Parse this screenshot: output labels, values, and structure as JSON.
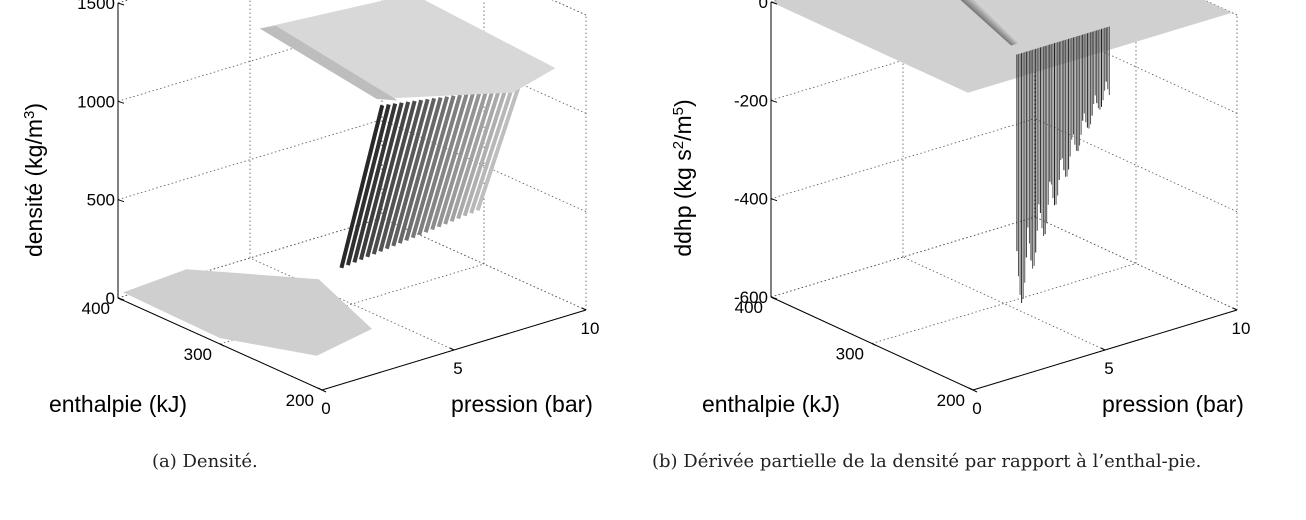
{
  "captions": {
    "a": "(a) Densité.",
    "b": "(b) Dérivée partielle de la densité par rapport à l’enthal-pie."
  },
  "chart_data": [
    {
      "type": "surface",
      "zlabel": "densité (kg/m³)",
      "zlabel_main": "densité (kg/m",
      "zlabel_sup": "3",
      "zlabel_end": ")",
      "xlabel": "pression (bar)",
      "ylabel": "enthalpie (kJ)",
      "xlim": [
        0,
        10
      ],
      "ylim": [
        200,
        400
      ],
      "zlim": [
        0,
        1500
      ],
      "xticks": [
        0,
        5,
        10
      ],
      "yticks": [
        200,
        300,
        400
      ],
      "zticks": [
        0,
        500,
        1000,
        1500
      ],
      "grid": true,
      "colormap": "gray",
      "surface_levels": {
        "vapour_region": 0,
        "liquid_region": 1200
      }
    },
    {
      "type": "surface",
      "zlabel": "ddhp (kg s²/m⁵)",
      "zlabel_main": "ddhp (kg s",
      "zlabel_sup": "2",
      "zlabel_mid": "/m",
      "zlabel_sup2": "5",
      "zlabel_end": ")",
      "xlabel": "pression (bar)",
      "ylabel": "enthalpie (kJ)",
      "xlim": [
        0,
        10
      ],
      "ylim": [
        200,
        400
      ],
      "zlim": [
        -600,
        0
      ],
      "xticks": [
        0,
        5,
        10
      ],
      "yticks": [
        200,
        300,
        400
      ],
      "zticks": [
        -600,
        -400,
        -200,
        0
      ],
      "grid": true,
      "colormap": "gray",
      "surface_levels": {
        "plateau": 0,
        "minimum": -560
      }
    }
  ]
}
